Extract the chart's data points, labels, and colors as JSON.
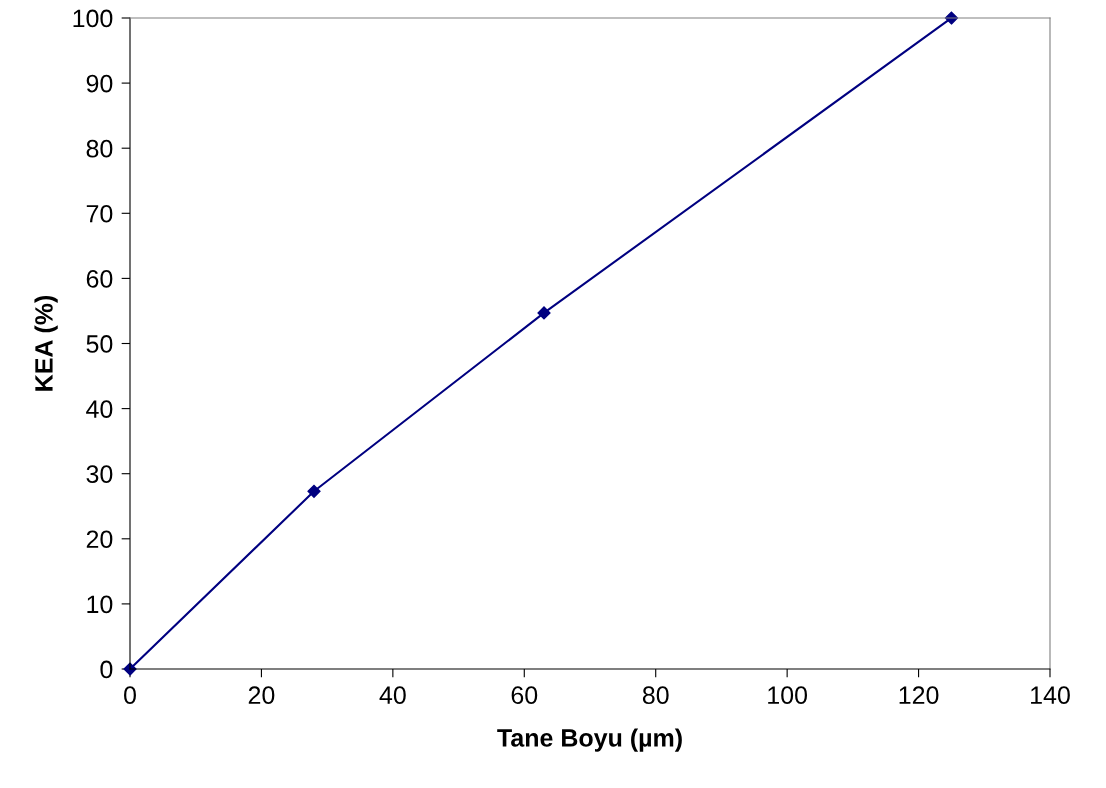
{
  "chart_data": {
    "type": "line",
    "xlabel": "Tane Boyu (µm)",
    "ylabel": "KEA (%)",
    "x": [
      0,
      28,
      63,
      125
    ],
    "series": [
      {
        "color": "#000080",
        "values": [
          0,
          27.3,
          54.7,
          100
        ]
      }
    ],
    "xlim": [
      0,
      140
    ],
    "xticks": [
      0,
      20,
      40,
      60,
      80,
      100,
      120,
      140
    ],
    "ylim": [
      0,
      100
    ],
    "yticks": [
      0,
      10,
      20,
      30,
      40,
      50,
      60,
      70,
      80,
      90,
      100
    ],
    "marker": "diamond",
    "line_style": "solid",
    "grid": false,
    "legend": false
  }
}
